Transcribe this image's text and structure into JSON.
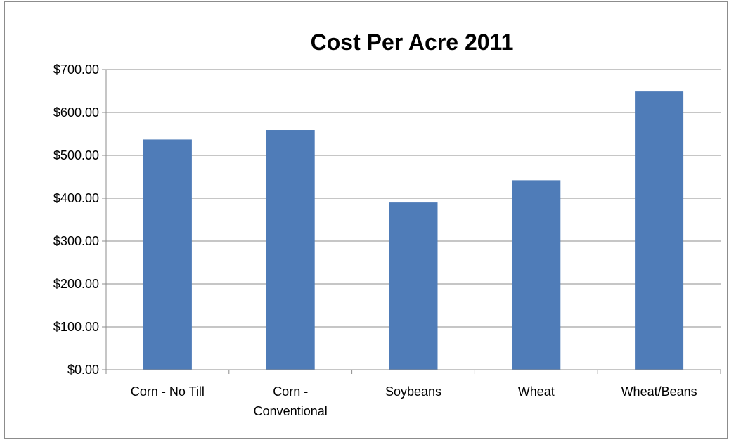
{
  "chart_data": {
    "type": "bar",
    "title": "Cost Per Acre 2011",
    "xlabel": "",
    "ylabel": "",
    "categories": [
      "Corn - No Till",
      "Corn - Conventional",
      "Soybeans",
      "Wheat",
      "Wheat/Beans"
    ],
    "category_label_lines": [
      [
        "Corn - No Till"
      ],
      [
        "Corn -",
        "Conventional"
      ],
      [
        "Soybeans"
      ],
      [
        "Wheat"
      ],
      [
        "Wheat/Beans"
      ]
    ],
    "values": [
      537,
      559,
      390,
      442,
      649
    ],
    "ylim": [
      0,
      700
    ],
    "yticks": [
      0,
      100,
      200,
      300,
      400,
      500,
      600,
      700
    ],
    "ytick_labels": [
      "$0.00",
      "$100.00",
      "$200.00",
      "$300.00",
      "$400.00",
      "$500.00",
      "$600.00",
      "$700.00"
    ],
    "bar_color": "#4f7cb8",
    "grid": true,
    "legend": "none"
  }
}
